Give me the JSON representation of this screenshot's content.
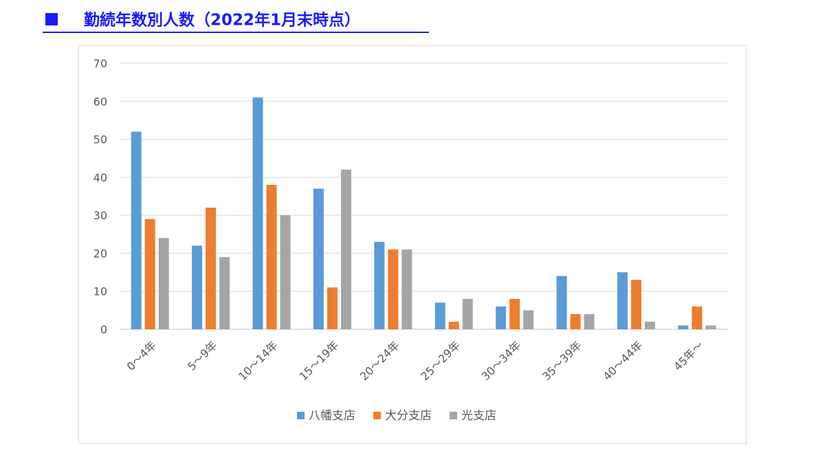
{
  "header": {
    "title": "勤続年数別人数（2022年1月末時点）"
  },
  "chart_data": {
    "type": "bar",
    "title": "",
    "xlabel": "",
    "ylabel": "",
    "ylim": [
      0,
      70
    ],
    "yticks": [
      0,
      10,
      20,
      30,
      40,
      50,
      60,
      70
    ],
    "grid": true,
    "legend_position": "bottom",
    "categories": [
      "0～4年",
      "5～9年",
      "10～14年",
      "15～19年",
      "20～24年",
      "25～29年",
      "30～34年",
      "35～39年",
      "40～44年",
      "45年～"
    ],
    "series": [
      {
        "name": "八幡支店",
        "color": "#5b9bd5",
        "values": [
          52,
          22,
          61,
          37,
          23,
          7,
          6,
          14,
          15,
          1
        ]
      },
      {
        "name": "大分支店",
        "color": "#ed7d31",
        "values": [
          29,
          32,
          38,
          11,
          21,
          2,
          8,
          4,
          13,
          6
        ]
      },
      {
        "name": "光支店",
        "color": "#a5a5a5",
        "values": [
          24,
          19,
          30,
          42,
          21,
          8,
          5,
          4,
          2,
          1
        ]
      }
    ]
  }
}
